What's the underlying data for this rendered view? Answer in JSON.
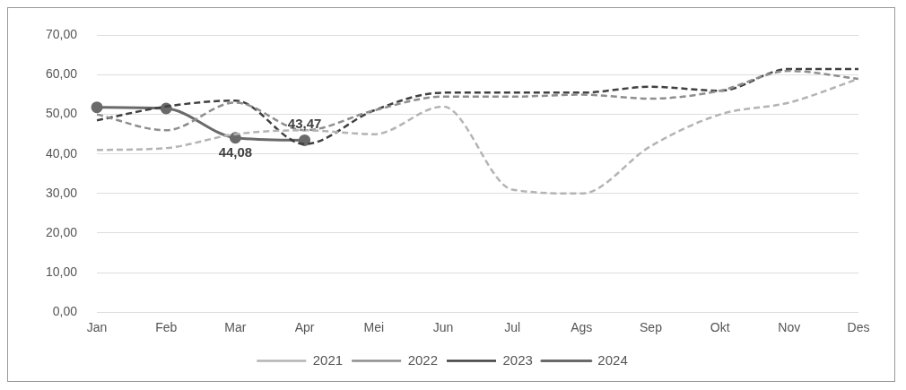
{
  "chart_data": {
    "type": "line",
    "categories": [
      "Jan",
      "Feb",
      "Mar",
      "Apr",
      "Mei",
      "Jun",
      "Jul",
      "Ags",
      "Sep",
      "Okt",
      "Nov",
      "Des"
    ],
    "series": [
      {
        "name": "2021",
        "color": "#b4b4b4",
        "line_style": "dashed",
        "marker": "none",
        "values": [
          41,
          41.5,
          45,
          46,
          45,
          52,
          31,
          30,
          42,
          50,
          53,
          59
        ]
      },
      {
        "name": "2022",
        "color": "#8e8e8e",
        "line_style": "dashed",
        "marker": "none",
        "values": [
          50,
          46,
          53,
          46,
          51,
          54.5,
          54.5,
          55,
          54,
          56,
          61,
          59
        ]
      },
      {
        "name": "2023",
        "color": "#404040",
        "line_style": "dashed",
        "marker": "none",
        "values": [
          48.5,
          52,
          53.5,
          42.5,
          51,
          55.5,
          55.5,
          55.5,
          57,
          56,
          61.5,
          61.5
        ]
      },
      {
        "name": "2024",
        "color": "#6a6a6a",
        "line_style": "solid",
        "marker": "circle",
        "values": [
          51.8,
          51.5,
          44.08,
          43.47,
          null,
          null,
          null,
          null,
          null,
          null,
          null,
          null
        ],
        "value_labels": [
          null,
          null,
          "44,08",
          "43,47",
          null,
          null,
          null,
          null,
          null,
          null,
          null,
          null
        ]
      }
    ],
    "ylim": [
      0,
      70
    ],
    "yticks": [
      {
        "value": 0,
        "label": "0,00"
      },
      {
        "value": 10,
        "label": "10,00"
      },
      {
        "value": 20,
        "label": "20,00"
      },
      {
        "value": 30,
        "label": "30,00"
      },
      {
        "value": 40,
        "label": "40,00"
      },
      {
        "value": 50,
        "label": "50,00"
      },
      {
        "value": 60,
        "label": "60,00"
      },
      {
        "value": 70,
        "label": "70,00"
      }
    ],
    "grid": "y",
    "legend": "bottom"
  }
}
